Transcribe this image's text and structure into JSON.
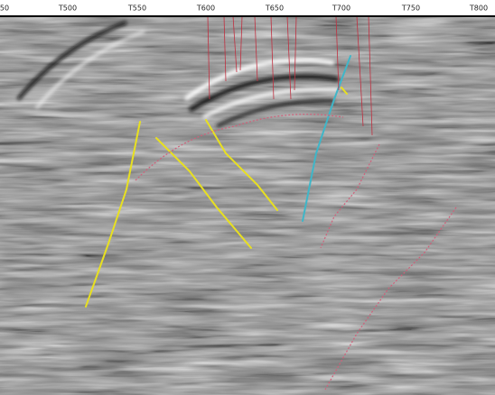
{
  "axis": {
    "ticks": [
      "50",
      "T500",
      "T550",
      "T600",
      "T650",
      "T700",
      "T750",
      "T800"
    ]
  }
}
